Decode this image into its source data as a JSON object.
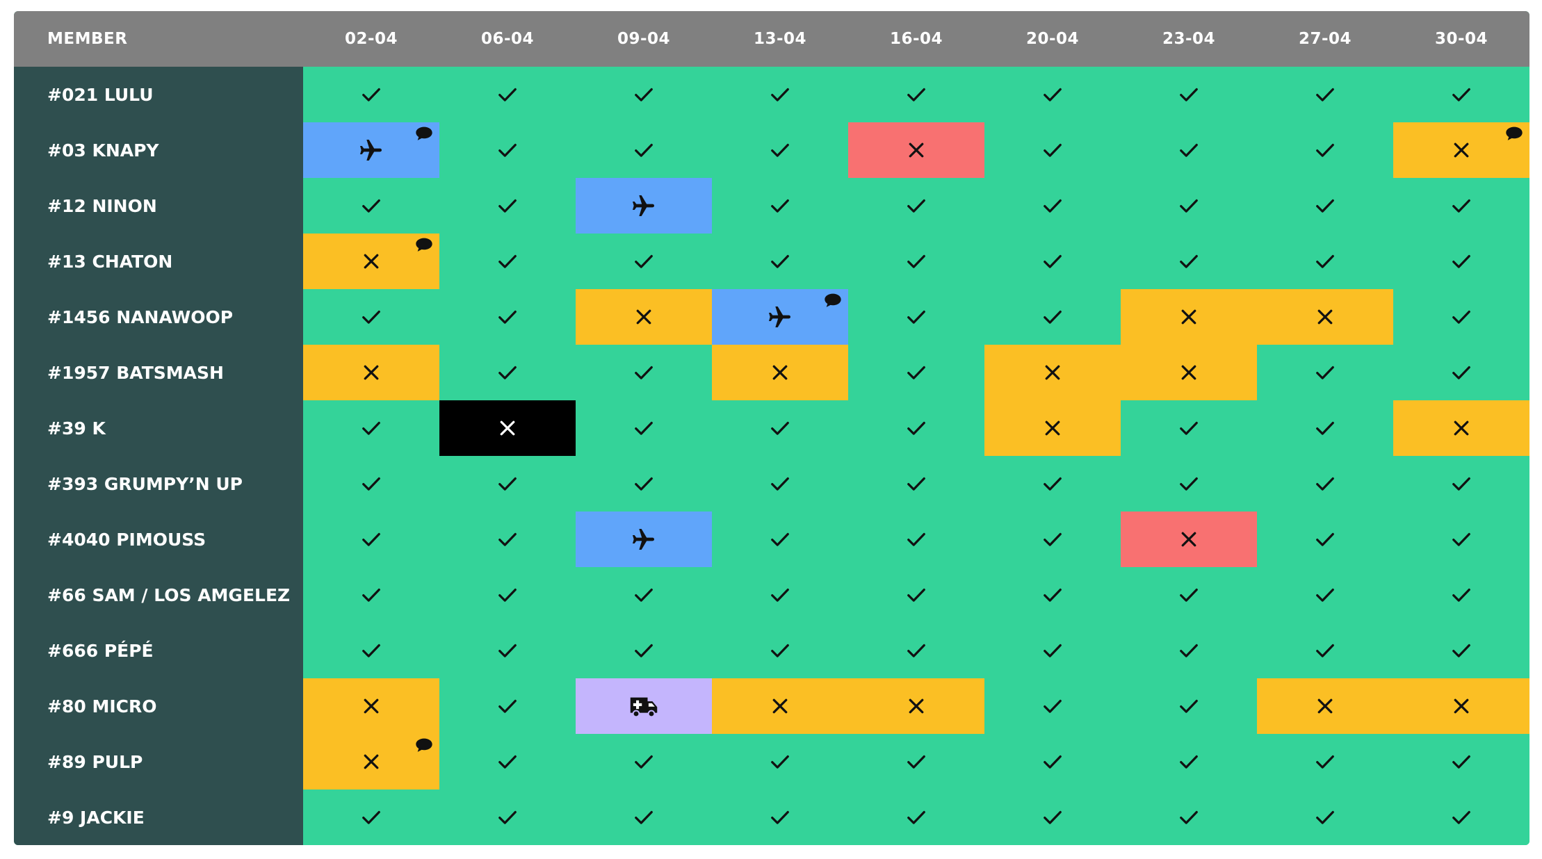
{
  "header": {
    "member_label": "MEMBER",
    "dates": [
      "02-04",
      "06-04",
      "09-04",
      "13-04",
      "16-04",
      "20-04",
      "23-04",
      "27-04",
      "30-04"
    ]
  },
  "legend_colors": {
    "ok": "#34d399",
    "absent": "#fbbf24",
    "travel": "#60a5fa",
    "refused": "#f87171",
    "banned": "#000000",
    "medical": "#c4b5fd",
    "header_bg": "#808080",
    "member_column_bg": "#2f4f4f"
  },
  "status_icons": {
    "ok": "check-icon",
    "absent": "x-icon",
    "refused": "x-icon",
    "banned": "x-icon",
    "travel": "airplane-icon",
    "medical": "ambulance-icon",
    "note": "speech-bubble-icon"
  },
  "rows": [
    {
      "member": "#021 LULU",
      "cells": [
        {
          "s": "ok"
        },
        {
          "s": "ok"
        },
        {
          "s": "ok"
        },
        {
          "s": "ok"
        },
        {
          "s": "ok"
        },
        {
          "s": "ok"
        },
        {
          "s": "ok"
        },
        {
          "s": "ok"
        },
        {
          "s": "ok"
        }
      ]
    },
    {
      "member": "#03 KNAPY",
      "cells": [
        {
          "s": "travel",
          "note": true
        },
        {
          "s": "ok"
        },
        {
          "s": "ok"
        },
        {
          "s": "ok"
        },
        {
          "s": "refused"
        },
        {
          "s": "ok"
        },
        {
          "s": "ok"
        },
        {
          "s": "ok"
        },
        {
          "s": "absent",
          "note": true
        }
      ]
    },
    {
      "member": "#12 NINON",
      "cells": [
        {
          "s": "ok"
        },
        {
          "s": "ok"
        },
        {
          "s": "travel"
        },
        {
          "s": "ok"
        },
        {
          "s": "ok"
        },
        {
          "s": "ok"
        },
        {
          "s": "ok"
        },
        {
          "s": "ok"
        },
        {
          "s": "ok"
        }
      ]
    },
    {
      "member": "#13 CHATON",
      "cells": [
        {
          "s": "absent",
          "note": true
        },
        {
          "s": "ok"
        },
        {
          "s": "ok"
        },
        {
          "s": "ok"
        },
        {
          "s": "ok"
        },
        {
          "s": "ok"
        },
        {
          "s": "ok"
        },
        {
          "s": "ok"
        },
        {
          "s": "ok"
        }
      ]
    },
    {
      "member": "#1456 NANAWOOP",
      "cells": [
        {
          "s": "ok"
        },
        {
          "s": "ok"
        },
        {
          "s": "absent"
        },
        {
          "s": "travel",
          "note": true
        },
        {
          "s": "ok"
        },
        {
          "s": "ok"
        },
        {
          "s": "absent"
        },
        {
          "s": "absent"
        },
        {
          "s": "ok"
        }
      ]
    },
    {
      "member": "#1957 BATSMASH",
      "cells": [
        {
          "s": "absent"
        },
        {
          "s": "ok"
        },
        {
          "s": "ok"
        },
        {
          "s": "absent"
        },
        {
          "s": "ok"
        },
        {
          "s": "absent"
        },
        {
          "s": "absent"
        },
        {
          "s": "ok"
        },
        {
          "s": "ok"
        }
      ]
    },
    {
      "member": "#39 K",
      "cells": [
        {
          "s": "ok"
        },
        {
          "s": "banned"
        },
        {
          "s": "ok"
        },
        {
          "s": "ok"
        },
        {
          "s": "ok"
        },
        {
          "s": "absent"
        },
        {
          "s": "ok"
        },
        {
          "s": "ok"
        },
        {
          "s": "absent"
        }
      ]
    },
    {
      "member": "#393 GRUMPY’N UP",
      "cells": [
        {
          "s": "ok"
        },
        {
          "s": "ok"
        },
        {
          "s": "ok"
        },
        {
          "s": "ok"
        },
        {
          "s": "ok"
        },
        {
          "s": "ok"
        },
        {
          "s": "ok"
        },
        {
          "s": "ok"
        },
        {
          "s": "ok"
        }
      ]
    },
    {
      "member": "#4040 PIMOUSS",
      "cells": [
        {
          "s": "ok"
        },
        {
          "s": "ok"
        },
        {
          "s": "travel"
        },
        {
          "s": "ok"
        },
        {
          "s": "ok"
        },
        {
          "s": "ok"
        },
        {
          "s": "refused"
        },
        {
          "s": "ok"
        },
        {
          "s": "ok"
        }
      ]
    },
    {
      "member": "#66 SAM / LOS AMGELEZ",
      "cells": [
        {
          "s": "ok"
        },
        {
          "s": "ok"
        },
        {
          "s": "ok"
        },
        {
          "s": "ok"
        },
        {
          "s": "ok"
        },
        {
          "s": "ok"
        },
        {
          "s": "ok"
        },
        {
          "s": "ok"
        },
        {
          "s": "ok"
        }
      ]
    },
    {
      "member": "#666 PÉPÉ",
      "cells": [
        {
          "s": "ok"
        },
        {
          "s": "ok"
        },
        {
          "s": "ok"
        },
        {
          "s": "ok"
        },
        {
          "s": "ok"
        },
        {
          "s": "ok"
        },
        {
          "s": "ok"
        },
        {
          "s": "ok"
        },
        {
          "s": "ok"
        }
      ]
    },
    {
      "member": "#80 MICRO",
      "cells": [
        {
          "s": "absent"
        },
        {
          "s": "ok"
        },
        {
          "s": "medical"
        },
        {
          "s": "absent"
        },
        {
          "s": "absent"
        },
        {
          "s": "ok"
        },
        {
          "s": "ok"
        },
        {
          "s": "absent"
        },
        {
          "s": "absent"
        }
      ]
    },
    {
      "member": "#89 PULP",
      "cells": [
        {
          "s": "absent",
          "note": true
        },
        {
          "s": "ok"
        },
        {
          "s": "ok"
        },
        {
          "s": "ok"
        },
        {
          "s": "ok"
        },
        {
          "s": "ok"
        },
        {
          "s": "ok"
        },
        {
          "s": "ok"
        },
        {
          "s": "ok"
        }
      ]
    },
    {
      "member": "#9 JACKIE",
      "cells": [
        {
          "s": "ok"
        },
        {
          "s": "ok"
        },
        {
          "s": "ok"
        },
        {
          "s": "ok"
        },
        {
          "s": "ok"
        },
        {
          "s": "ok"
        },
        {
          "s": "ok"
        },
        {
          "s": "ok"
        },
        {
          "s": "ok"
        }
      ]
    }
  ]
}
